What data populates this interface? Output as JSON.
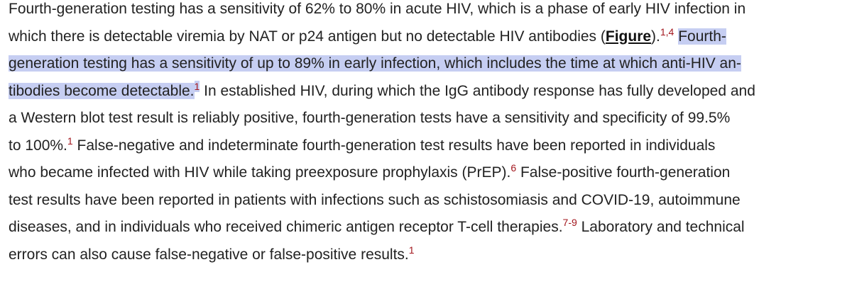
{
  "paragraph": {
    "lines": [
      [
        {
          "text": "Fourth-generation testing has a sensitivity of 62% to 80% in acute HIV, which is a phase of early HIV infection in"
        }
      ],
      [
        {
          "text": "which there is detectable viremia by NAT or p24 antigen but no detectable HIV antibodies ("
        },
        {
          "link": "Figure"
        },
        {
          "text": ")."
        },
        {
          "sup": "1,4"
        },
        {
          "text": " "
        },
        {
          "mark": "Fourth-"
        }
      ],
      [
        {
          "mark": "generation testing has a sensitivity of up to 89% in early infection, which includes the time at which anti-HIV an-"
        }
      ],
      [
        {
          "mark": "tibodies become detectable."
        },
        {
          "mark_sup": "1"
        },
        {
          "text": " In established HIV, during which the IgG antibody response has fully developed and"
        }
      ],
      [
        {
          "text": "a Western blot test result is reliably positive, fourth-generation tests have a sensitivity and specificity of 99.5%"
        }
      ],
      [
        {
          "text": "to 100%."
        },
        {
          "sup": "1"
        },
        {
          "text": " False-negative and indeterminate fourth-generation test results have been reported in individuals"
        }
      ],
      [
        {
          "text": "who became infected with HIV while taking preexposure prophylaxis (PrEP)."
        },
        {
          "sup": "6"
        },
        {
          "text": " False-positive fourth-generation"
        }
      ],
      [
        {
          "text": "test results have been reported in patients with infections such as schistosomiasis and COVID-19, autoimmune"
        }
      ],
      [
        {
          "text": "diseases, and in individuals who received chimeric antigen receptor T-cell therapies."
        },
        {
          "sup": "7-9"
        },
        {
          "text": " Laboratory and technical"
        }
      ],
      [
        {
          "text": "errors can also cause false-negative or false-positive results."
        },
        {
          "sup": "1"
        }
      ]
    ]
  }
}
